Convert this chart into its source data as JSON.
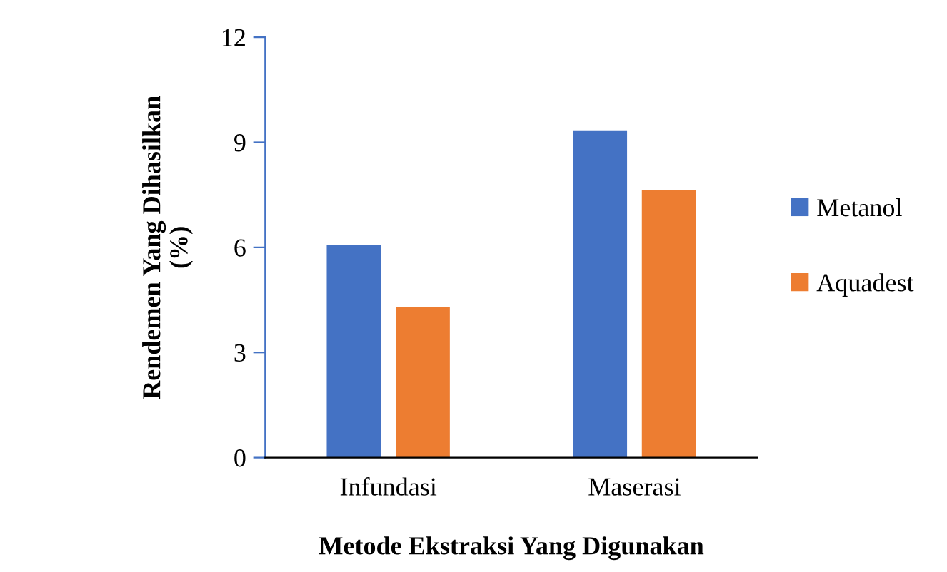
{
  "chart_data": {
    "type": "bar",
    "xlabel": "Metode Ekstraksi Yang Digunakan",
    "ylabel": "Rendemen Yang Dihasilkan\n(%)",
    "categories": [
      "Infundasi",
      "Maserasi"
    ],
    "series": [
      {
        "name": "Metanol",
        "color": "#4472c4",
        "values": [
          6.07,
          9.34
        ]
      },
      {
        "name": "Aquadest",
        "color": "#ed7d31",
        "values": [
          4.31,
          7.63
        ]
      }
    ],
    "ylim": [
      0,
      12
    ],
    "yticks": [
      0,
      3,
      6,
      9,
      12
    ],
    "grid": false,
    "legend": "right"
  }
}
